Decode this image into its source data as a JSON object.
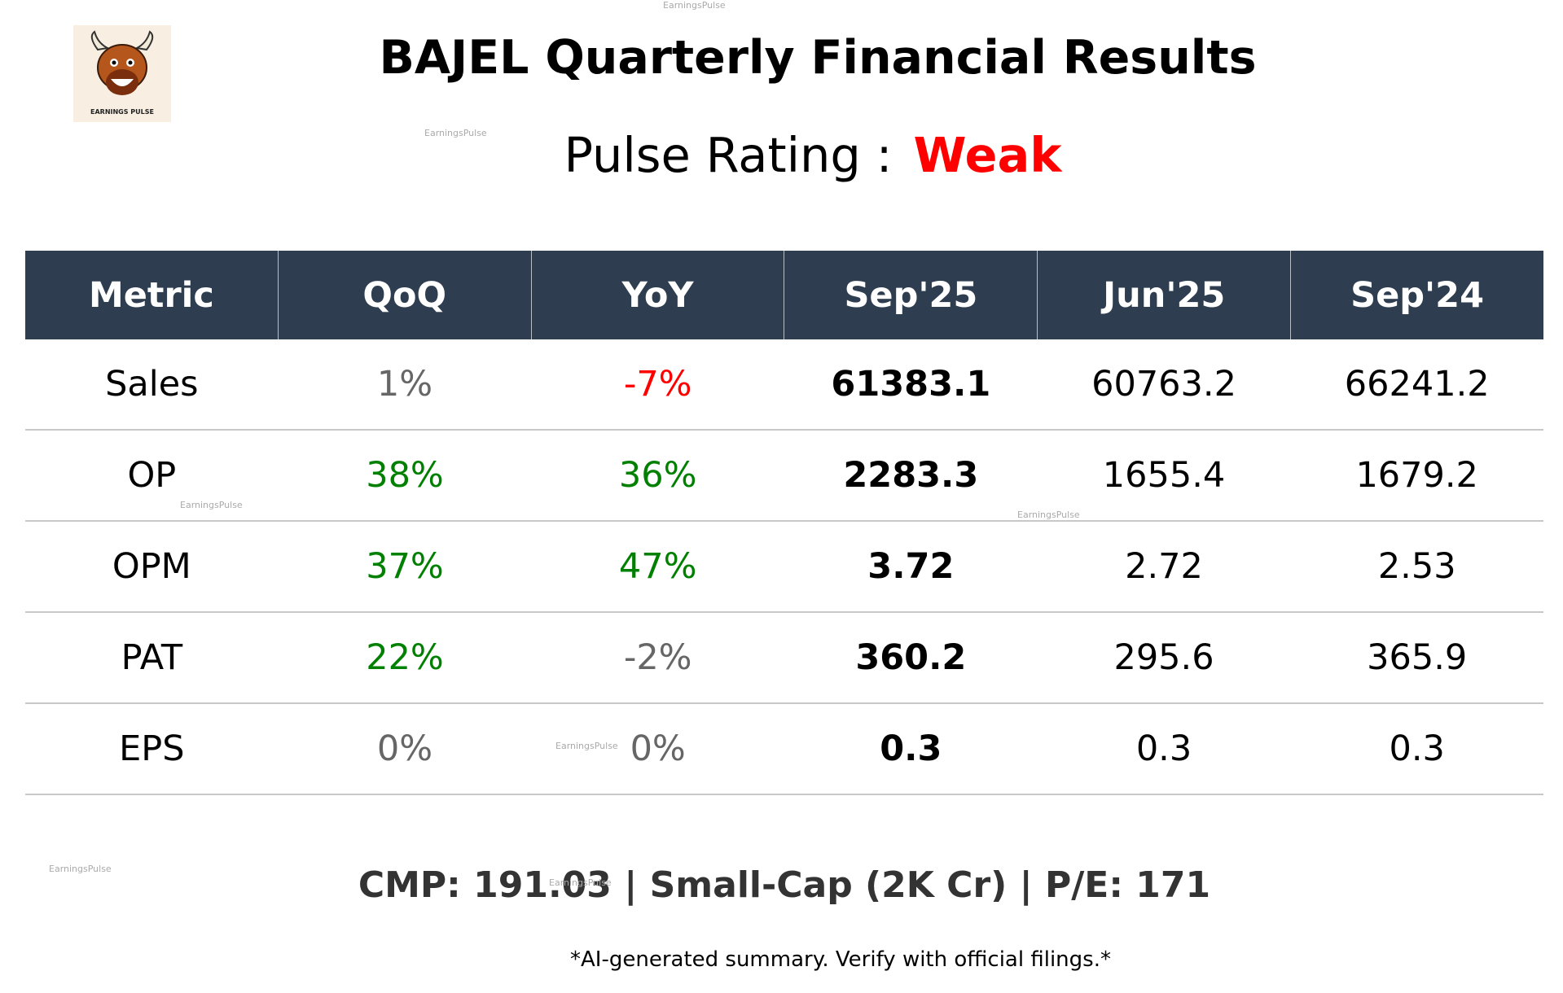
{
  "header": {
    "title": "BAJEL Quarterly Financial Results",
    "rating_label": "Pulse Rating :",
    "rating": "Weak"
  },
  "logo": {
    "text": "EARNINGS PULSE"
  },
  "watermark": "EarningsPulse",
  "table": {
    "columns": [
      "Metric",
      "QoQ",
      "YoY",
      "Sep'25",
      "Jun'25",
      "Sep'24"
    ],
    "rows": [
      [
        "Sales",
        "1%",
        "-7%",
        "61383.1",
        "60763.2",
        "66241.2"
      ],
      [
        "OP",
        "38%",
        "36%",
        "2283.3",
        "1655.4",
        "1679.2"
      ],
      [
        "OPM",
        "37%",
        "47%",
        "3.72",
        "2.72",
        "2.53"
      ],
      [
        "PAT",
        "22%",
        "-2%",
        "360.2",
        "295.6",
        "365.9"
      ],
      [
        "EPS",
        "0%",
        "0%",
        "0.3",
        "0.3",
        "0.3"
      ]
    ]
  },
  "footer": {
    "summary": "CMP: 191.03 | Small-Cap (2K Cr) | P/E: 171",
    "disclaimer": "*AI-generated summary. Verify with official filings.*"
  }
}
